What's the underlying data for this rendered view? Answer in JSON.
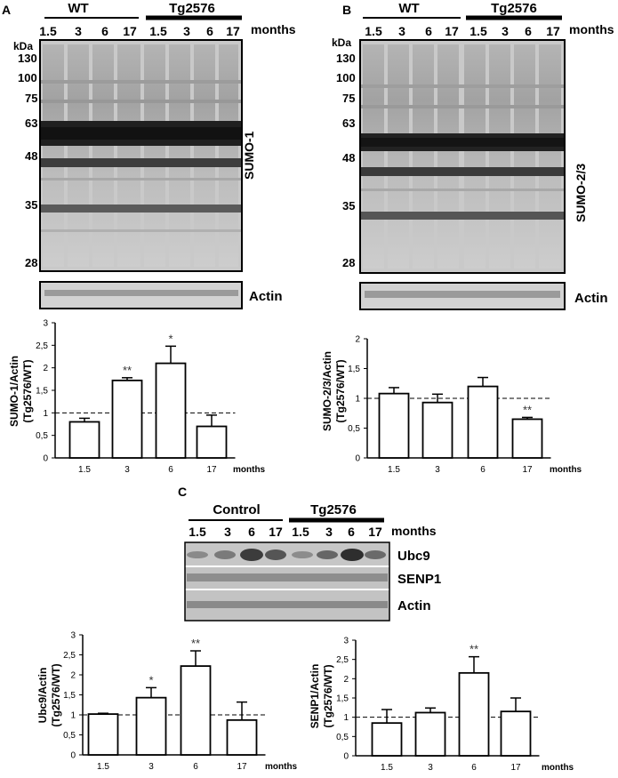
{
  "panels": {
    "A": {
      "letter": "A",
      "group_wt": "WT",
      "group_tg": "Tg2576",
      "lanes": [
        "1.5",
        "3",
        "6",
        "17",
        "1.5",
        "3",
        "6",
        "17"
      ],
      "months_label": "months",
      "kda_label": "kDa",
      "markers": [
        "130",
        "100",
        "75",
        "63",
        "48",
        "35",
        "28"
      ],
      "blot_label": "SUMO-1",
      "actin_label": "Actin"
    },
    "B": {
      "letter": "B",
      "group_wt": "WT",
      "group_tg": "Tg2576",
      "lanes": [
        "1.5",
        "3",
        "6",
        "17",
        "1.5",
        "3",
        "6",
        "17"
      ],
      "months_label": "months",
      "kda_label": "kDa",
      "markers": [
        "130",
        "100",
        "75",
        "63",
        "48",
        "35",
        "28"
      ],
      "blot_label": "SUMO-2/3",
      "actin_label": "Actin"
    },
    "C": {
      "letter": "C",
      "group_ctrl": "Control",
      "group_tg": "Tg2576",
      "lanes": [
        "1.5",
        "3",
        "6",
        "17",
        "1.5",
        "3",
        "6",
        "17"
      ],
      "months_label": "months",
      "blot_labels": [
        "Ubc9",
        "SENP1",
        "Actin"
      ]
    }
  },
  "chart_data": [
    {
      "type": "bar",
      "ylabel": "SUMO-1/Actin (Tg2576/WT)",
      "xlabel": "months",
      "categories": [
        "1.5",
        "3",
        "6",
        "17"
      ],
      "values": [
        0.8,
        1.72,
        2.1,
        0.7
      ],
      "errors": [
        0.08,
        0.06,
        0.38,
        0.25
      ],
      "significance": [
        "",
        "**",
        "*",
        ""
      ],
      "ylim": [
        0,
        3
      ],
      "yticks": [
        "0",
        "0,5",
        "1",
        "1,5",
        "2",
        "2,5",
        "3"
      ],
      "reference_line": 1,
      "grid": false
    },
    {
      "type": "bar",
      "ylabel": "SUMO-2/3/Actin (Tg2576/WT)",
      "xlabel": "months",
      "categories": [
        "1.5",
        "3",
        "6",
        "17"
      ],
      "values": [
        1.08,
        0.93,
        1.2,
        0.65
      ],
      "errors": [
        0.1,
        0.14,
        0.15,
        0.03
      ],
      "significance": [
        "",
        "",
        "",
        "**"
      ],
      "ylim": [
        0,
        2
      ],
      "yticks": [
        "0",
        "0,5",
        "1",
        "1,5",
        "2"
      ],
      "reference_line": 1,
      "grid": false
    },
    {
      "type": "bar",
      "ylabel": "Ubc9/Actin (Tg2576/WT)",
      "xlabel": "months",
      "categories": [
        "1.5",
        "3",
        "6",
        "17"
      ],
      "values": [
        1.02,
        1.43,
        2.22,
        0.87
      ],
      "errors": [
        0.02,
        0.25,
        0.38,
        0.45
      ],
      "significance": [
        "",
        "*",
        "**",
        ""
      ],
      "ylim": [
        0,
        3
      ],
      "yticks": [
        "0",
        "0,5",
        "1",
        "1,5",
        "2",
        "2,5",
        "3"
      ],
      "reference_line": 1,
      "grid": false
    },
    {
      "type": "bar",
      "ylabel": "SENP1/Actin (Tg2576/WT)",
      "xlabel": "months",
      "categories": [
        "1.5",
        "3",
        "6",
        "17"
      ],
      "values": [
        0.85,
        1.12,
        2.15,
        1.15
      ],
      "errors": [
        0.35,
        0.12,
        0.42,
        0.35
      ],
      "significance": [
        "",
        "",
        "**",
        ""
      ],
      "ylim": [
        0,
        3
      ],
      "yticks": [
        "0",
        "0,5",
        "1",
        "1,5",
        "2",
        "2,5",
        "3"
      ],
      "reference_line": 1,
      "grid": false
    }
  ]
}
